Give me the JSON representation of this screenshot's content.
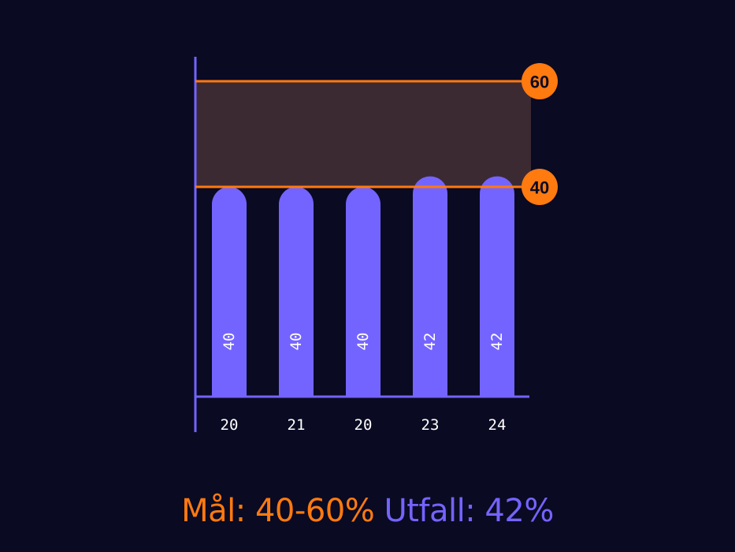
{
  "chart_data": {
    "type": "bar",
    "categories": [
      "20",
      "21",
      "20",
      "23",
      "24"
    ],
    "values": [
      40,
      40,
      40,
      42,
      42
    ],
    "ylim": [
      0,
      60
    ],
    "target_range": {
      "low": 40,
      "high": 60,
      "low_label": "40",
      "high_label": "60"
    },
    "title": "",
    "xlabel": "",
    "ylabel": ""
  },
  "caption": {
    "goal": "Mål: 40-60%",
    "outcome": "Utfall: 42%"
  },
  "colors": {
    "background": "#0a0a23",
    "bar": "#7464ff",
    "axis": "#7464ff",
    "target": "#ff7a0f",
    "band": "#3c2a33",
    "label": "#ffffff"
  }
}
